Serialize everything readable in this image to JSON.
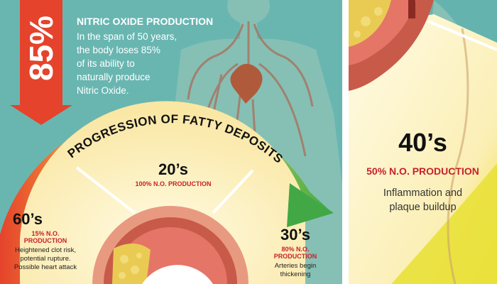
{
  "colors": {
    "teal_bg": "#69b6b1",
    "arrow_red": "#e5432b",
    "accent_red": "#c8202b",
    "green": "#4fb24a",
    "cream": "#fdf4c8",
    "artery_red": "#b5473f",
    "plaque_yellow": "#e9cb53"
  },
  "left": {
    "big_percent": "85%",
    "heading": "NITRIC OXIDE PRODUCTION",
    "body_lines": [
      "In the span of 50 years,",
      "the body loses 85%",
      "of its ability to",
      "naturally produce",
      "Nitric Oxide."
    ],
    "arc_label": "PROGRESSION OF FATTY DEPOSITS",
    "stages": {
      "s20": {
        "title": "20’s",
        "prod": [
          "100% N.O. PRODUCTION"
        ],
        "desc": []
      },
      "s60": {
        "title": "60’s",
        "prod": [
          "15% N.O.",
          "PRODUCTION"
        ],
        "desc": [
          "Heightened clot risk,",
          "potential rupture.",
          "Possible heart attack"
        ]
      },
      "s30": {
        "title": "30’s",
        "prod": [
          "80% N.O.",
          "PRODUCTION"
        ],
        "desc": [
          "Arteries begin",
          "thickening"
        ]
      }
    }
  },
  "right": {
    "title": "40’s",
    "prod": "50% N.O. PRODUCTION",
    "desc": [
      "Inflammation and",
      "plaque buildup"
    ]
  },
  "icons": {
    "down_arrow": "down-arrow-icon",
    "progress_arrow": "progress-arrow-icon",
    "body": "human-body-illustration",
    "artery": "artery-cross-section"
  }
}
